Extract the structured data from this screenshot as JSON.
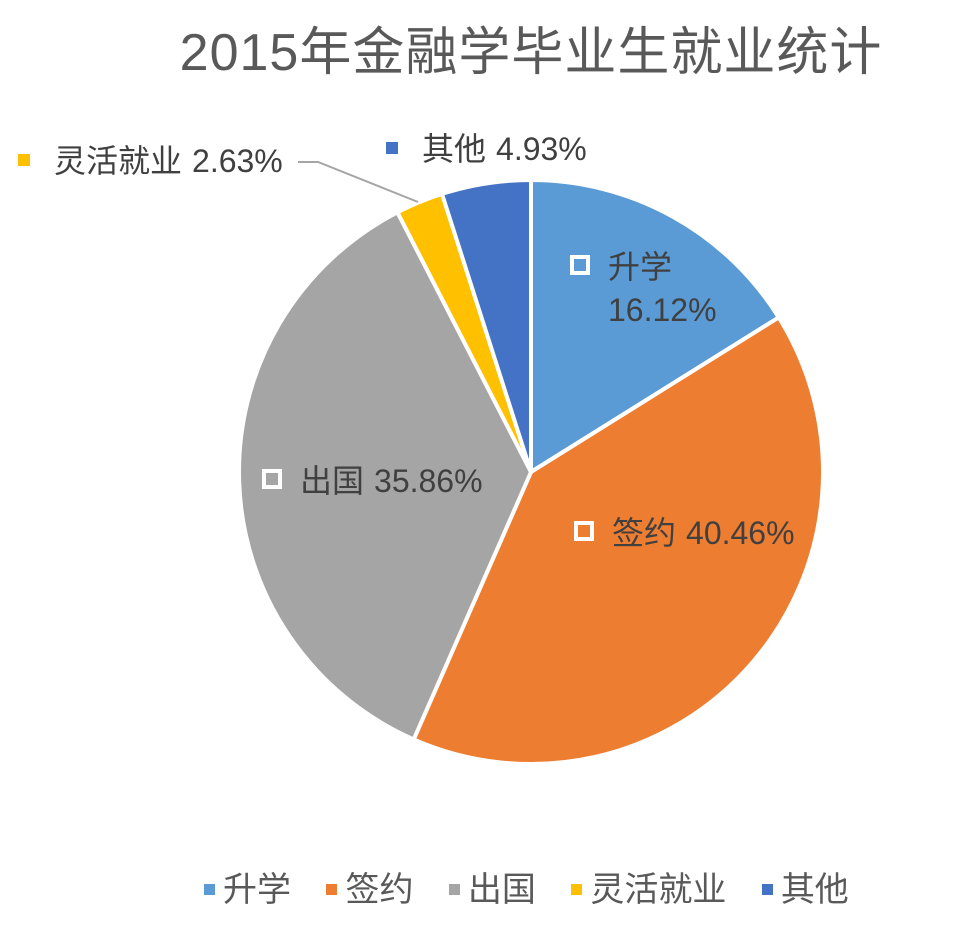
{
  "chart_data": {
    "type": "pie",
    "title": "2015年金融学毕业生就业统计",
    "categories": [
      "升学",
      "签约",
      "出国",
      "灵活就业",
      "其他"
    ],
    "values": [
      16.12,
      40.46,
      35.86,
      2.63,
      4.93
    ],
    "value_labels": [
      "16.12%",
      "40.46%",
      "35.86%",
      "2.63%",
      "4.93%"
    ],
    "colors": [
      "#5B9BD5",
      "#ED7D31",
      "#A5A5A5",
      "#FFC000",
      "#4472C4"
    ],
    "legend_position": "bottom",
    "start_angle": "12 o'clock",
    "direction": "clockwise"
  }
}
